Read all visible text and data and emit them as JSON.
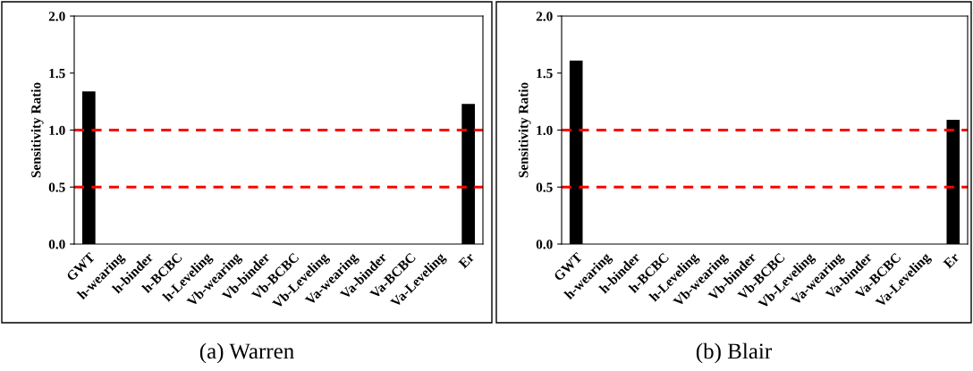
{
  "chart_data": [
    {
      "type": "bar",
      "title": "(a) Warren",
      "ylabel": "Sensitivity Ratio",
      "categories": [
        "GWT",
        "h-wearing",
        "h-binder",
        "h-BCBC",
        "h-Leveling",
        "Vb-wearing",
        "Vb-binder",
        "Vb-BCBC",
        "Vb-Leveling",
        "Va-wearing",
        "Va-binder",
        "Va-BCBC",
        "Va-Leveling",
        "Er"
      ],
      "values": [
        1.34,
        0,
        0,
        0,
        0,
        0,
        0,
        0,
        0,
        0,
        0,
        0,
        0,
        1.23
      ],
      "color": "#000000",
      "ylim": [
        0,
        2
      ],
      "yticks": [
        {
          "value": 0,
          "label": "0.0"
        },
        {
          "value": 0.5,
          "label": "0.5"
        },
        {
          "value": 1,
          "label": "1.0"
        },
        {
          "value": 1.5,
          "label": "1.5"
        },
        {
          "value": 2,
          "label": "2.0"
        }
      ],
      "ref_lines": [
        {
          "axis": "y",
          "value": 1.0,
          "color": "#ff0000",
          "line_style": "dashed"
        },
        {
          "axis": "y",
          "value": 0.5,
          "color": "#ff0000",
          "line_style": "dashed"
        }
      ]
    },
    {
      "type": "bar",
      "title": "(b) Blair",
      "ylabel": "Sensitivity Ratio",
      "categories": [
        "GWT",
        "h-wearing",
        "h-binder",
        "h-BCBC",
        "h-Leveling",
        "Vb-wearing",
        "Vb-binder",
        "Vb-BCBC",
        "Vb-Leveling",
        "Va-wearing",
        "Va-binder",
        "Va-BCBC",
        "Va-Leveling",
        "Er"
      ],
      "values": [
        1.61,
        0,
        0,
        0,
        0,
        0,
        0,
        0,
        0,
        0,
        0,
        0,
        0,
        1.09
      ],
      "color": "#000000",
      "ylim": [
        0,
        2
      ],
      "yticks": [
        {
          "value": 0,
          "label": "0.0"
        },
        {
          "value": 0.5,
          "label": "0.5"
        },
        {
          "value": 1,
          "label": "1.0"
        },
        {
          "value": 1.5,
          "label": "1.5"
        },
        {
          "value": 2,
          "label": "2.0"
        }
      ],
      "ref_lines": [
        {
          "axis": "y",
          "value": 1.0,
          "color": "#ff0000",
          "line_style": "dashed"
        },
        {
          "axis": "y",
          "value": 0.5,
          "color": "#ff0000",
          "line_style": "dashed"
        }
      ]
    }
  ]
}
